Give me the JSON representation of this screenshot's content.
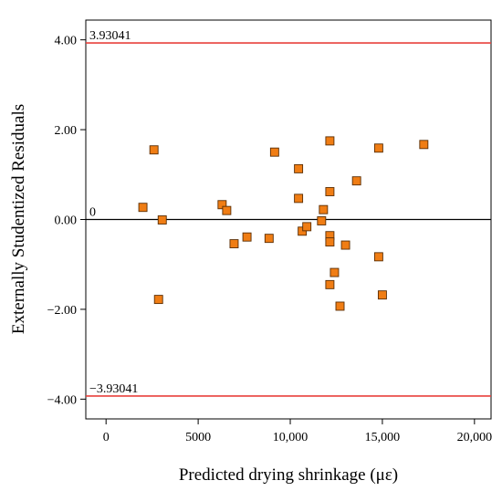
{
  "chart_data": {
    "type": "scatter",
    "xlabel": "Predicted drying shrinkage (με)",
    "ylabel": "Externally Studentized Residuals",
    "xlim": [
      -1100,
      20900
    ],
    "ylim": [
      -4.44,
      4.44
    ],
    "x_ticks": [
      0,
      5000,
      10000,
      15000,
      20000
    ],
    "x_tick_labels": [
      "0",
      "5000",
      "10,000",
      "15,000",
      "20,000"
    ],
    "y_ticks": [
      4,
      2,
      0,
      -2,
      -4
    ],
    "y_tick_labels": [
      "4.00",
      "2.00",
      "0.00",
      "−2.00",
      "−4.00"
    ],
    "grid": false,
    "upper_limit": {
      "value": 3.93041,
      "label": "3.93041",
      "color": "#e8413c"
    },
    "lower_limit": {
      "value": -3.93041,
      "label": "−3.93041",
      "color": "#e8413c"
    },
    "zero_line": {
      "value": 0,
      "label": "0",
      "color": "#000000"
    },
    "marker_color": "#f07d14",
    "points": [
      {
        "x": 2000,
        "y": 0.27
      },
      {
        "x": 2600,
        "y": 1.55
      },
      {
        "x": 2850,
        "y": -1.78
      },
      {
        "x": 3050,
        "y": -0.01
      },
      {
        "x": 6300,
        "y": 0.33
      },
      {
        "x": 6550,
        "y": 0.2
      },
      {
        "x": 6950,
        "y": -0.54
      },
      {
        "x": 7650,
        "y": -0.39
      },
      {
        "x": 8850,
        "y": -0.42
      },
      {
        "x": 9150,
        "y": 1.5
      },
      {
        "x": 10450,
        "y": 1.13
      },
      {
        "x": 10450,
        "y": 0.47
      },
      {
        "x": 10650,
        "y": -0.26
      },
      {
        "x": 10900,
        "y": -0.16
      },
      {
        "x": 11700,
        "y": -0.03
      },
      {
        "x": 11800,
        "y": 0.22
      },
      {
        "x": 12150,
        "y": 1.75
      },
      {
        "x": 12150,
        "y": 0.62
      },
      {
        "x": 12150,
        "y": -0.36
      },
      {
        "x": 12150,
        "y": -0.5
      },
      {
        "x": 12150,
        "y": -1.45
      },
      {
        "x": 12400,
        "y": -1.18
      },
      {
        "x": 12700,
        "y": -1.93
      },
      {
        "x": 13000,
        "y": -0.57
      },
      {
        "x": 13600,
        "y": 0.86
      },
      {
        "x": 14800,
        "y": 1.59
      },
      {
        "x": 14800,
        "y": -0.83
      },
      {
        "x": 15000,
        "y": -1.68
      },
      {
        "x": 17250,
        "y": 1.67
      }
    ]
  }
}
